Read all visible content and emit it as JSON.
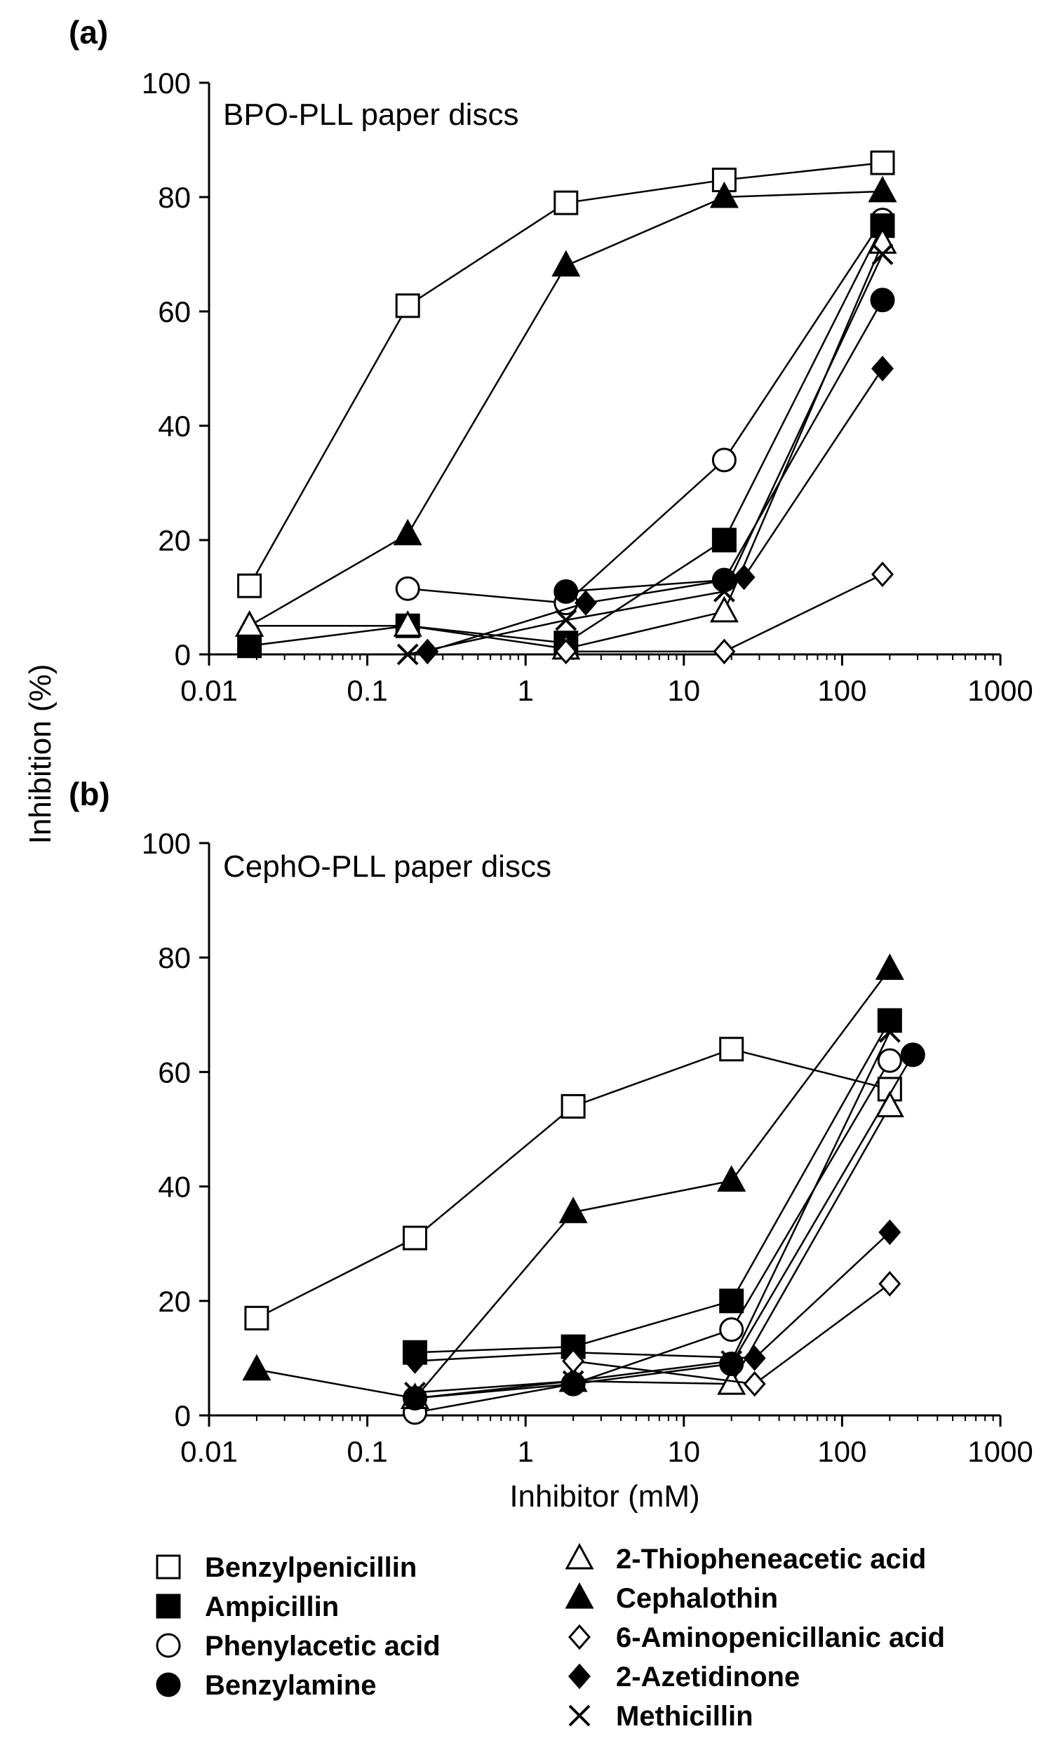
{
  "figure": {
    "ylabel": "Inhibition (%)",
    "xlabel": "Inhibitor (mM)"
  },
  "legend": [
    {
      "label": "Benzylpenicillin",
      "marker": "square-open"
    },
    {
      "label": "Ampicillin",
      "marker": "square-filled"
    },
    {
      "label": "Phenylacetic acid",
      "marker": "circle-open"
    },
    {
      "label": "Benzylamine",
      "marker": "circle-filled"
    },
    {
      "label": "2-Thiopheneacetic acid",
      "marker": "triangle-open"
    },
    {
      "label": "Cephalothin",
      "marker": "triangle-filled"
    },
    {
      "label": "6-Aminopenicillanic acid",
      "marker": "diamond-open"
    },
    {
      "label": "2-Azetidinone",
      "marker": "diamond-filled"
    },
    {
      "label": "Methicillin",
      "marker": "x"
    }
  ],
  "chart_data": [
    {
      "panel": "(a)",
      "title": "BPO-PLL paper discs",
      "type": "line",
      "xscale": "log",
      "xlim": [
        0.01,
        1000
      ],
      "ylim": [
        0,
        100
      ],
      "x_ticks": [
        "0.01",
        "0.1",
        "1",
        "10",
        "100",
        "1000"
      ],
      "y_ticks": [
        "0",
        "20",
        "40",
        "60",
        "80",
        "100"
      ],
      "series": [
        {
          "name": "Benzylpenicillin",
          "marker": "square-open",
          "x": [
            0.018,
            0.18,
            1.8,
            18,
            180
          ],
          "y": [
            12,
            61,
            79,
            83,
            86
          ]
        },
        {
          "name": "Cephalothin",
          "marker": "triangle-filled",
          "x": [
            0.018,
            0.18,
            1.8,
            18,
            180
          ],
          "y": [
            5,
            21,
            68,
            80,
            81
          ]
        },
        {
          "name": "Phenylacetic acid",
          "marker": "circle-open",
          "x": [
            0.18,
            1.8,
            18,
            180
          ],
          "y": [
            11.5,
            9,
            34,
            76
          ]
        },
        {
          "name": "Ampicillin",
          "marker": "square-filled",
          "x": [
            0.018,
            0.18,
            1.8,
            18,
            180
          ],
          "y": [
            1.5,
            5,
            2,
            20,
            75
          ]
        },
        {
          "name": "2-Thiopheneacetic acid",
          "marker": "triangle-open",
          "x": [
            0.018,
            0.18,
            1.8,
            18,
            180
          ],
          "y": [
            5,
            5,
            1,
            7.5,
            72
          ]
        },
        {
          "name": "Methicillin",
          "marker": "x",
          "x": [
            0.18,
            1.8,
            18,
            180
          ],
          "y": [
            0,
            6,
            11,
            70
          ]
        },
        {
          "name": "Benzylamine",
          "marker": "circle-filled",
          "x": [
            1.8,
            18,
            180
          ],
          "y": [
            11,
            13,
            62
          ]
        },
        {
          "name": "2-Azetidinone",
          "marker": "diamond-filled",
          "x": [
            0.24,
            2.4,
            24,
            180
          ],
          "y": [
            0.5,
            9,
            13.5,
            50
          ]
        },
        {
          "name": "6-Aminopenicillanic acid",
          "marker": "diamond-open",
          "x": [
            1.8,
            18,
            180
          ],
          "y": [
            0.5,
            0.5,
            14
          ]
        }
      ]
    },
    {
      "panel": "(b)",
      "title": "CephO-PLL paper discs",
      "type": "line",
      "xscale": "log",
      "xlim": [
        0.01,
        1000
      ],
      "ylim": [
        0,
        100
      ],
      "x_ticks": [
        "0.01",
        "0.1",
        "1",
        "10",
        "100",
        "1000"
      ],
      "y_ticks": [
        "0",
        "20",
        "40",
        "60",
        "80",
        "100"
      ],
      "series": [
        {
          "name": "Benzylpenicillin",
          "marker": "square-open",
          "x": [
            0.02,
            0.2,
            2,
            20,
            200
          ],
          "y": [
            17,
            31,
            54,
            64,
            57
          ]
        },
        {
          "name": "Cephalothin",
          "marker": "triangle-filled",
          "x": [
            0.02,
            0.2,
            2,
            20,
            200
          ],
          "y": [
            8,
            3,
            35.5,
            41,
            78
          ]
        },
        {
          "name": "Ampicillin",
          "marker": "square-filled",
          "x": [
            0.2,
            2,
            20,
            200
          ],
          "y": [
            11,
            12,
            20,
            69
          ]
        },
        {
          "name": "Phenylacetic acid",
          "marker": "circle-open",
          "x": [
            0.2,
            2,
            20,
            200
          ],
          "y": [
            0.5,
            5.5,
            15,
            62
          ]
        },
        {
          "name": "2-Thiopheneacetic acid",
          "marker": "triangle-open",
          "x": [
            0.2,
            2,
            20,
            200
          ],
          "y": [
            3,
            6,
            5.5,
            54
          ]
        },
        {
          "name": "Methicillin",
          "marker": "x",
          "x": [
            0.2,
            2,
            20,
            200
          ],
          "y": [
            4,
            6,
            9.5,
            67
          ]
        },
        {
          "name": "Benzylamine",
          "marker": "circle-filled",
          "x": [
            0.2,
            2,
            20,
            280
          ],
          "y": [
            3,
            5.5,
            9,
            63
          ]
        },
        {
          "name": "2-Azetidinone",
          "marker": "diamond-filled",
          "x": [
            0.2,
            2,
            28,
            200
          ],
          "y": [
            9.5,
            11,
            10,
            32
          ]
        },
        {
          "name": "6-Aminopenicillanic acid",
          "marker": "diamond-open",
          "x": [
            2,
            28,
            200
          ],
          "y": [
            9.5,
            5.5,
            23
          ]
        }
      ]
    }
  ]
}
